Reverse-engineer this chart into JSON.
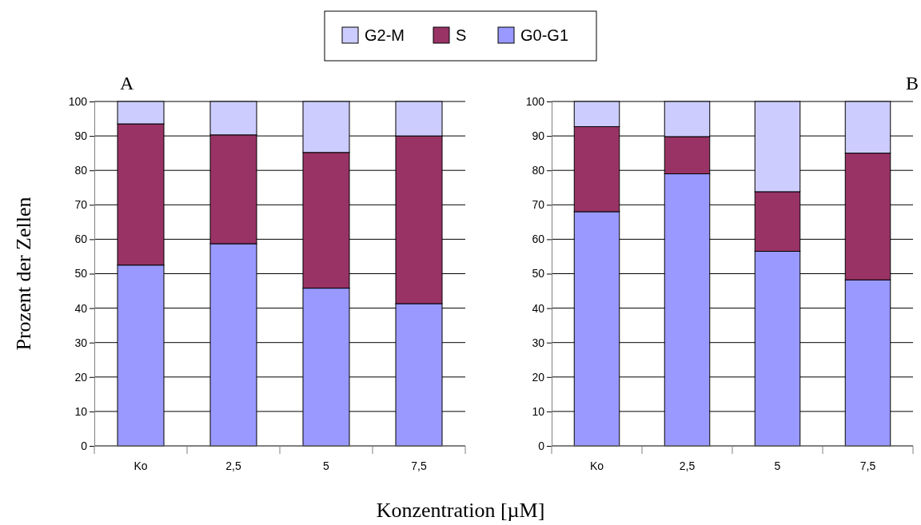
{
  "chart_data": [
    {
      "type": "bar",
      "title": "A",
      "xlabel": "Konzentration [µM]",
      "ylabel": "Prozent der Zellen",
      "categories": [
        "Ko",
        "2,5",
        "5",
        "7,5"
      ],
      "stacked": true,
      "ylim": [
        0,
        100
      ],
      "yticks": [
        0,
        10,
        20,
        30,
        40,
        50,
        60,
        70,
        80,
        90,
        100
      ],
      "grid": "y",
      "legend": "top",
      "series": [
        {
          "name": "G0-G1",
          "color": "#9999ff",
          "values": [
            52.5,
            58.7,
            45.8,
            41.3
          ]
        },
        {
          "name": "S",
          "color": "#993366",
          "values": [
            41,
            31.6,
            39.4,
            48.7
          ]
        },
        {
          "name": "G2-M",
          "color": "#ccccff",
          "values": [
            6.5,
            9.7,
            14.8,
            10
          ]
        }
      ]
    },
    {
      "type": "bar",
      "title": "B",
      "categories": [
        "Ko",
        "2,5",
        "5",
        "7,5"
      ],
      "stacked": true,
      "ylim": [
        0,
        100
      ],
      "yticks": [
        0,
        10,
        20,
        30,
        40,
        50,
        60,
        70,
        80,
        90,
        100
      ],
      "grid": "y",
      "series": [
        {
          "color": "#9999ff",
          "values": [
            68,
            79,
            56.5,
            48.2
          ]
        },
        {
          "color": "#993366",
          "values": [
            24.7,
            10.8,
            17.3,
            36.8
          ]
        },
        {
          "color": "#ccccff",
          "values": [
            7.3,
            10.2,
            26.2,
            15
          ]
        }
      ]
    }
  ]
}
